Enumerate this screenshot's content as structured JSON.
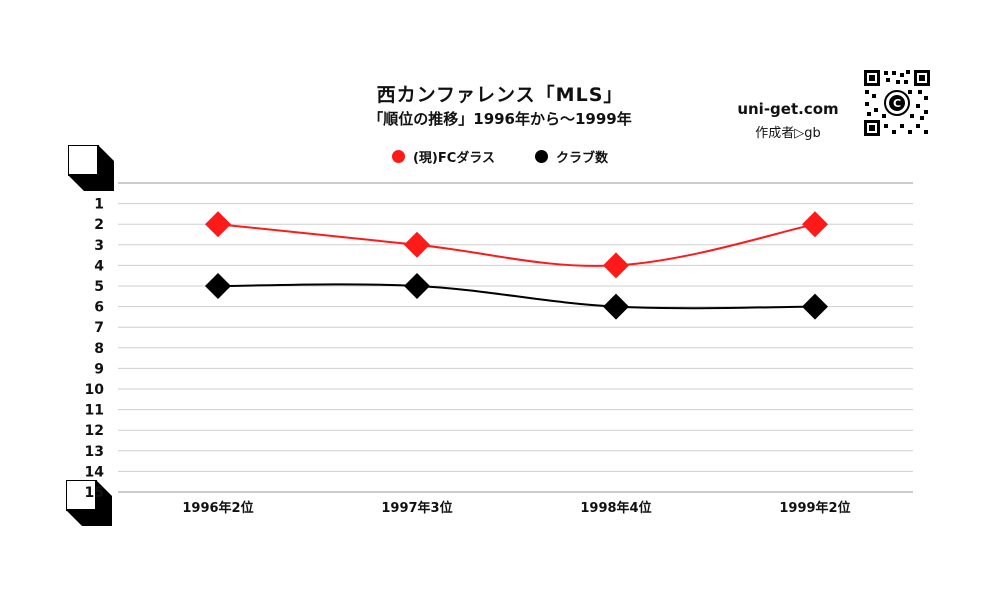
{
  "chart_data": {
    "type": "line",
    "title": "西カンファレンス「MLS」",
    "subtitle": "「順位の推移」1996年から～1999年",
    "categories": [
      "1996年2位",
      "1997年3位",
      "1998年4位",
      "1999年2位"
    ],
    "y_ticks": [
      "1",
      "2",
      "3",
      "4",
      "5",
      "6",
      "7",
      "8",
      "9",
      "10",
      "11",
      "12",
      "13",
      "14",
      "15"
    ],
    "ylim": [
      0,
      15
    ],
    "y_inverted": true,
    "grid": true,
    "legend_position": "top",
    "series": [
      {
        "name": "(現)FCダラス",
        "values": [
          2,
          3,
          4,
          2
        ],
        "color": "#ff1a1a"
      },
      {
        "name": "クラブ数",
        "values": [
          5,
          5,
          6,
          6
        ],
        "color": "#000000"
      }
    ]
  },
  "brand": {
    "site": "uni-get.com",
    "author": "作成者▷gb"
  },
  "icons": {
    "qr": "qr-code-icon",
    "corner": "page-corner-icon"
  }
}
